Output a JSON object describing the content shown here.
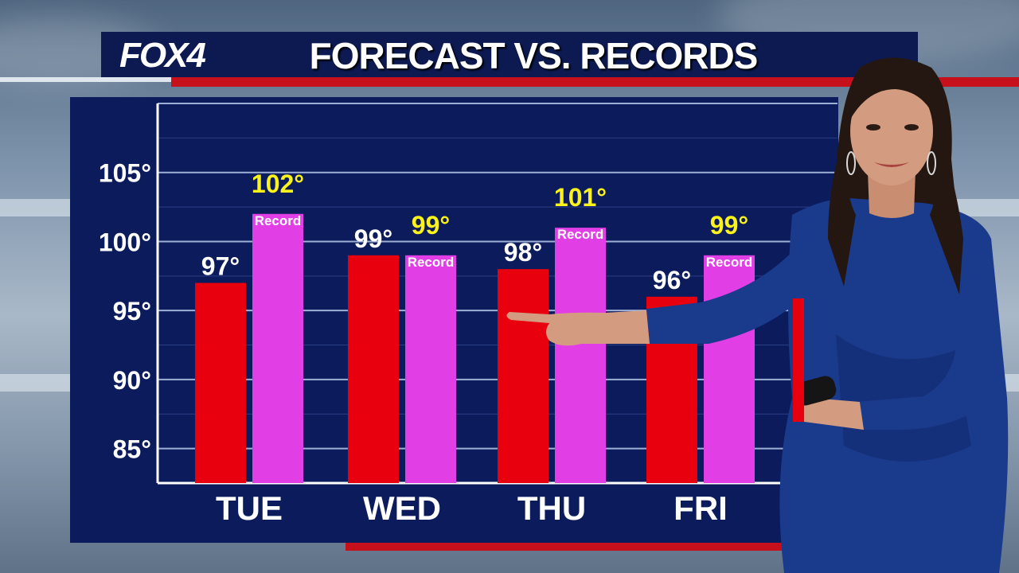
{
  "header": {
    "logo": "FOX4",
    "title": "FORECAST VS. RECORDS"
  },
  "colors": {
    "forecast": "#e8000e",
    "record": "#e23ee6",
    "record_label": "#fbf21b",
    "panel": "#0c1b5c"
  },
  "chart_data": {
    "type": "bar",
    "title": "FORECAST VS. RECORDS",
    "categories": [
      "TUE",
      "WED",
      "THU",
      "FRI"
    ],
    "series": [
      {
        "values": [
          97,
          99,
          98,
          96
        ],
        "labels": [
          "97°",
          "99°",
          "98°",
          "96°"
        ]
      },
      {
        "values": [
          102,
          99,
          101,
          99
        ],
        "labels": [
          "102°",
          "99°",
          "101°",
          "99°"
        ]
      }
    ],
    "record_word": "Record",
    "yticks": [
      85,
      90,
      95,
      100,
      105
    ],
    "ytick_labels": [
      "85°",
      "90°",
      "95°",
      "100°",
      "105°"
    ],
    "ylim": [
      82.5,
      110
    ],
    "grid": true
  }
}
